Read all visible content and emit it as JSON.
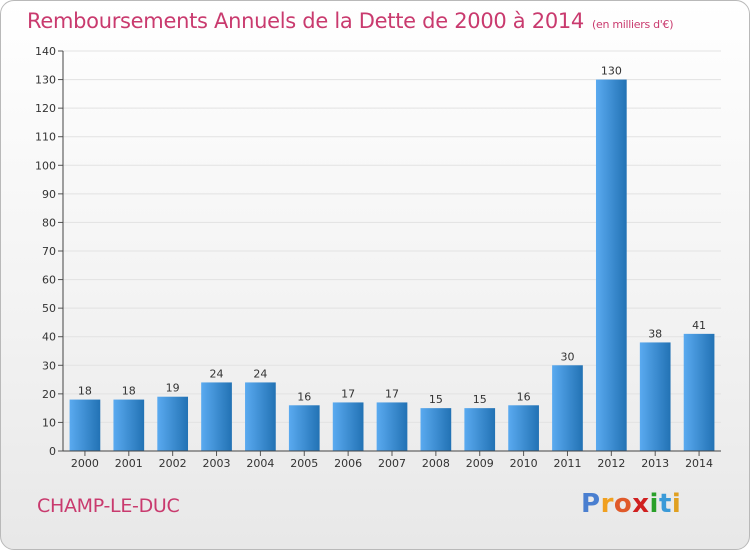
{
  "header": {
    "title": "Remboursements Annuels de la Dette de 2000 à 2014",
    "unit": "(en milliers d'€)"
  },
  "footer": {
    "place": "CHAMP-LE-DUC",
    "logo": [
      "P",
      "r",
      "o",
      "x",
      "i",
      "t",
      "i"
    ]
  },
  "colors": {
    "title": "#c93a6e",
    "bar_light": "#5aaaf0",
    "bar_dark": "#2272b4",
    "grid": "#e2e2e2"
  },
  "chart_data": {
    "type": "bar",
    "categories": [
      "2000",
      "2001",
      "2002",
      "2003",
      "2004",
      "2005",
      "2006",
      "2007",
      "2008",
      "2009",
      "2010",
      "2011",
      "2012",
      "2013",
      "2014"
    ],
    "values": [
      18,
      18,
      19,
      24,
      24,
      16,
      17,
      17,
      15,
      15,
      16,
      30,
      130,
      38,
      41
    ],
    "ylim": [
      0,
      140
    ],
    "yticks": [
      0,
      10,
      20,
      30,
      40,
      50,
      60,
      70,
      80,
      90,
      100,
      110,
      120,
      130,
      140
    ],
    "xlabel": "",
    "ylabel": "",
    "grid": true,
    "data_labels": true
  }
}
